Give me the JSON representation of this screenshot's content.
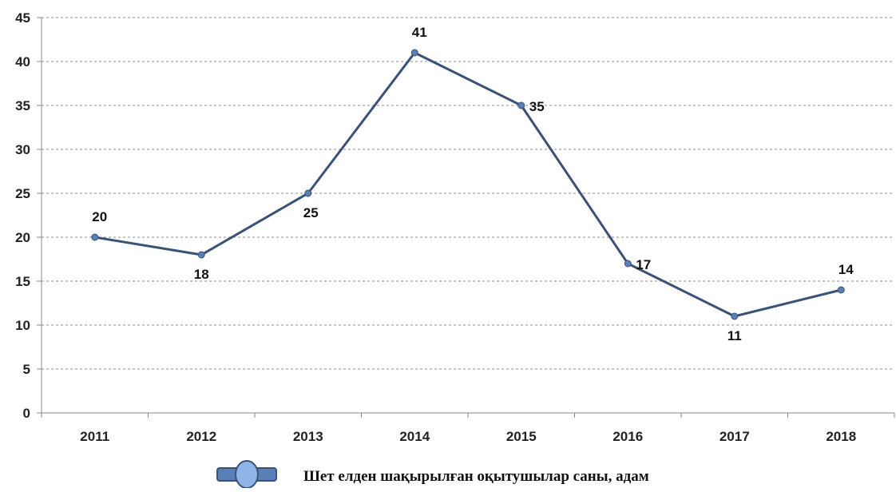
{
  "chart_data": {
    "type": "line",
    "categories": [
      "2011",
      "2012",
      "2013",
      "2014",
      "2015",
      "2016",
      "2017",
      "2018"
    ],
    "series": [
      {
        "name": "Шет елден шақырылған оқытушылар саны, адам",
        "values": [
          20,
          18,
          25,
          41,
          35,
          17,
          11,
          14
        ],
        "color": "#3b5277",
        "marker_color": "#5a7fb5"
      }
    ],
    "title": "",
    "xlabel": "",
    "ylabel": "",
    "ylim": [
      0,
      45
    ],
    "yticks": [
      "0",
      "5",
      "10",
      "15",
      "20",
      "25",
      "30",
      "35",
      "40",
      "45"
    ],
    "data_labels": [
      "20",
      "18",
      "25",
      "41",
      "35",
      "17",
      "11",
      "14"
    ],
    "grid": true,
    "legend_position": "bottom-center"
  }
}
